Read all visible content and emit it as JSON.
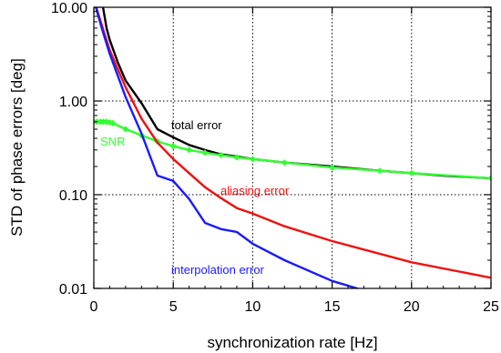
{
  "chart_data": {
    "type": "line",
    "xlabel": "synchronization rate [Hz]",
    "ylabel": "STD of phase errors [deg]",
    "xlim": [
      0,
      25
    ],
    "ylim": [
      0.01,
      10
    ],
    "y_scale": "log",
    "x_ticks": [
      0,
      5,
      10,
      15,
      20,
      25
    ],
    "x_tick_labels": [
      "0",
      "5",
      "10",
      "15",
      "20",
      "25"
    ],
    "y_ticks": [
      0.01,
      0.1,
      1,
      10
    ],
    "y_tick_labels": [
      "0.01",
      "0.10",
      "1.00",
      "10.00"
    ],
    "grid": "dotted lines at x = 5, 10, 15, 20 and y = 0.1, 1.0",
    "series": [
      {
        "name": "total error",
        "color": "#000000",
        "x": [
          0.5,
          0.8,
          1.0,
          1.5,
          2.0,
          3.0,
          4.0,
          5.0,
          6.0,
          7.0,
          8.0,
          9.0,
          10.0,
          12.0,
          15.0,
          18.0,
          20.0,
          22.0,
          25.0
        ],
        "y": [
          12.0,
          6.0,
          4.5,
          2.6,
          1.65,
          0.95,
          0.5,
          0.41,
          0.34,
          0.3,
          0.27,
          0.255,
          0.24,
          0.22,
          0.2,
          0.18,
          0.17,
          0.16,
          0.15
        ]
      },
      {
        "name": "SNR",
        "color": "#33ff33",
        "markers": true,
        "x": [
          0.0,
          0.2,
          0.4,
          0.6,
          0.8,
          1.0,
          1.2,
          2.0,
          3.0,
          4.0,
          5.0,
          6.0,
          7.0,
          8.0,
          9.0,
          10.0,
          12.0,
          15.0,
          18.0,
          20.0,
          25.0
        ],
        "y": [
          0.6,
          0.6,
          0.6,
          0.6,
          0.6,
          0.59,
          0.58,
          0.5,
          0.43,
          0.37,
          0.33,
          0.3,
          0.28,
          0.265,
          0.25,
          0.24,
          0.22,
          0.195,
          0.18,
          0.17,
          0.15
        ]
      },
      {
        "name": "aliasing error",
        "color": "#ee1111",
        "x": [
          0.0,
          0.5,
          1.0,
          1.5,
          2.0,
          3.0,
          4.0,
          5.0,
          6.0,
          7.0,
          8.0,
          9.0,
          10.0,
          12.0,
          15.0,
          20.0,
          25.0
        ],
        "y": [
          12.0,
          6.5,
          3.5,
          2.2,
          1.4,
          0.65,
          0.36,
          0.24,
          0.17,
          0.12,
          0.092,
          0.072,
          0.063,
          0.046,
          0.032,
          0.019,
          0.013
        ]
      },
      {
        "name": "interpolation error",
        "color": "#1a1aff",
        "x": [
          0.0,
          0.5,
          1.0,
          2.0,
          3.0,
          4.0,
          5.0,
          6.0,
          7.0,
          8.0,
          9.0,
          10.0,
          12.0,
          15.0,
          17.0
        ],
        "y": [
          12.0,
          6.0,
          3.2,
          1.1,
          0.45,
          0.16,
          0.14,
          0.09,
          0.05,
          0.043,
          0.04,
          0.03,
          0.02,
          0.012,
          0.0095
        ]
      }
    ]
  }
}
